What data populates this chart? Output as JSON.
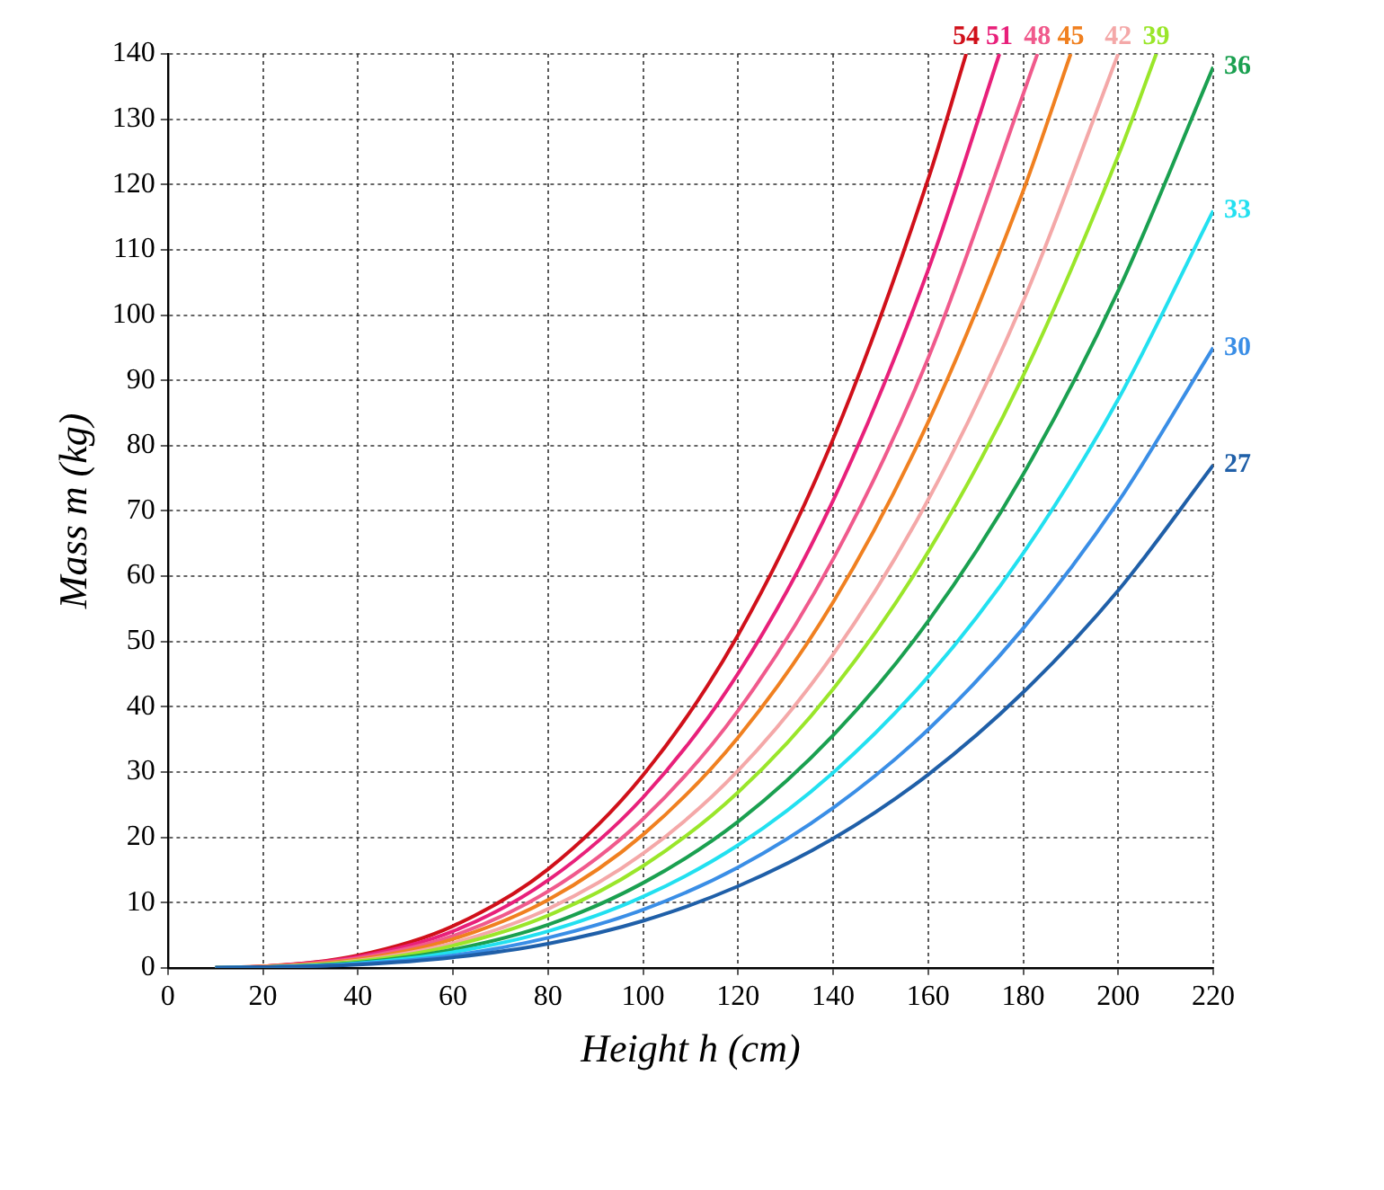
{
  "chart_data": {
    "type": "line",
    "xlabel": "Height h (cm)",
    "ylabel": "Mass m (kg)",
    "xlim": [
      0,
      220
    ],
    "xticks": [
      0,
      20,
      40,
      60,
      80,
      100,
      120,
      140,
      160,
      180,
      200,
      220
    ],
    "ylim": [
      0,
      140
    ],
    "yticks": [
      0,
      10,
      20,
      30,
      40,
      50,
      60,
      70,
      80,
      90,
      100,
      110,
      120,
      130,
      140
    ],
    "grid": true,
    "legend": false,
    "marker": "none",
    "line_style": "solid",
    "series": [
      {
        "name": "27",
        "color": "#1f5fa8",
        "x": [
          10,
          20,
          40,
          60,
          80,
          100,
          120,
          140,
          160,
          180,
          200,
          220
        ],
        "values": [
          0,
          0.1,
          0.5,
          1.6,
          3.7,
          7.2,
          12.5,
          19.8,
          29.6,
          42.2,
          57.8,
          77
        ]
      },
      {
        "name": "30",
        "color": "#3a8ee6",
        "x": [
          10,
          20,
          40,
          60,
          80,
          100,
          120,
          140,
          160,
          180,
          200,
          220
        ],
        "values": [
          0,
          0.1,
          0.6,
          1.9,
          4.6,
          8.9,
          15.4,
          24.5,
          36.5,
          52,
          71.4,
          95
        ]
      },
      {
        "name": "33",
        "color": "#22e0f0",
        "x": [
          10,
          20,
          40,
          60,
          80,
          100,
          120,
          140,
          160,
          180,
          200,
          220
        ],
        "values": [
          0,
          0.1,
          0.7,
          2.4,
          5.6,
          10.9,
          18.8,
          29.9,
          44.6,
          63.5,
          87.1,
          116
        ]
      },
      {
        "name": "36",
        "color": "#1aa050",
        "x": [
          10,
          20,
          40,
          60,
          80,
          100,
          120,
          140,
          160,
          180,
          200,
          220
        ],
        "values": [
          0,
          0.1,
          0.8,
          2.8,
          6.6,
          13,
          22.4,
          35.6,
          53.1,
          75.6,
          103.7,
          138
        ]
      },
      {
        "name": "39",
        "color": "#9ae62a",
        "x": [
          10,
          20,
          40,
          60,
          80,
          100,
          120,
          140,
          160,
          180,
          200,
          208
        ],
        "values": [
          0,
          0.1,
          1,
          3.4,
          8,
          15.6,
          26.9,
          42.7,
          63.7,
          90.7,
          124.4,
          140
        ]
      },
      {
        "name": "42",
        "color": "#f4a8a8",
        "x": [
          10,
          20,
          40,
          60,
          80,
          100,
          120,
          140,
          160,
          180,
          200
        ],
        "values": [
          0,
          0.1,
          1.1,
          3.8,
          9,
          17.5,
          30.2,
          48,
          71.7,
          102.1,
          140
        ]
      },
      {
        "name": "45",
        "color": "#f08020",
        "x": [
          10,
          20,
          40,
          60,
          80,
          100,
          120,
          140,
          160,
          180,
          190
        ],
        "values": [
          0,
          0.2,
          1.3,
          4.4,
          10.4,
          20.4,
          35.3,
          56,
          83.6,
          119,
          140
        ]
      },
      {
        "name": "48",
        "color": "#f05a8c",
        "x": [
          10,
          20,
          40,
          60,
          80,
          100,
          120,
          140,
          160,
          183
        ],
        "values": [
          0,
          0.2,
          1.5,
          4.9,
          11.7,
          22.8,
          39.4,
          62.6,
          93.4,
          140
        ]
      },
      {
        "name": "51",
        "color": "#e8207a",
        "x": [
          10,
          20,
          40,
          60,
          80,
          100,
          120,
          140,
          160,
          175
        ],
        "values": [
          0,
          0.2,
          1.7,
          5.6,
          13.4,
          26.1,
          45.1,
          71.6,
          106.9,
          140
        ]
      },
      {
        "name": "54",
        "color": "#d0101a",
        "x": [
          10,
          20,
          40,
          60,
          80,
          100,
          120,
          140,
          160,
          168
        ],
        "values": [
          0,
          0.2,
          1.9,
          6.4,
          15.1,
          29.5,
          51,
          81,
          120.8,
          140
        ]
      }
    ]
  }
}
